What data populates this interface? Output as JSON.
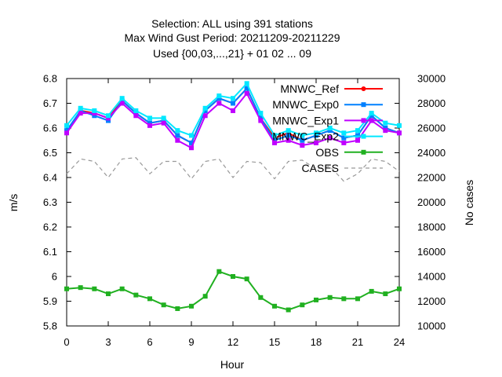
{
  "chart_data": {
    "type": "line",
    "title_lines": [
      "Selection: ALL using   391 stations",
      "Max Wind Gust   Period: 20211209-20211229",
      "Used {00,03,...,21} + 01 02 ... 09"
    ],
    "xlabel": "Hour",
    "ylabel": "m/s",
    "y2label": "No cases",
    "xlim": [
      0,
      24
    ],
    "ylim": [
      5.8,
      6.8
    ],
    "y2lim": [
      10000,
      30000
    ],
    "x_ticks": [
      "0",
      "3",
      "6",
      "9",
      "12",
      "15",
      "18",
      "21",
      "24"
    ],
    "y_ticks": [
      "5.8",
      "5.9",
      "6",
      "6.1",
      "6.2",
      "6.3",
      "6.4",
      "6.5",
      "6.6",
      "6.7",
      "6.8"
    ],
    "y2_ticks": [
      "10000",
      "12000",
      "14000",
      "16000",
      "18000",
      "20000",
      "22000",
      "24000",
      "26000",
      "28000",
      "30000"
    ],
    "grid": false,
    "legend_position": "top-right",
    "x": [
      0,
      1,
      2,
      3,
      4,
      5,
      6,
      7,
      8,
      9,
      10,
      11,
      12,
      13,
      14,
      15,
      16,
      17,
      18,
      19,
      20,
      21,
      22,
      23,
      24
    ],
    "series": [
      {
        "name": "MNWC_Ref",
        "color": "#ff0000",
        "marker": "circle",
        "axis": "left",
        "values": [
          6.58,
          6.67,
          6.66,
          6.64,
          6.71,
          6.66,
          6.62,
          6.63,
          6.57,
          6.54,
          6.67,
          6.72,
          6.7,
          6.76,
          6.64,
          6.56,
          6.58,
          6.55,
          6.57,
          6.59,
          6.56,
          6.57,
          6.65,
          6.6,
          6.58
        ]
      },
      {
        "name": "MNWC_Exp0",
        "color": "#0080ff",
        "marker": "square",
        "axis": "left",
        "values": [
          6.59,
          6.67,
          6.65,
          6.63,
          6.71,
          6.66,
          6.62,
          6.63,
          6.57,
          6.54,
          6.67,
          6.72,
          6.7,
          6.76,
          6.64,
          6.55,
          6.57,
          6.55,
          6.57,
          6.59,
          6.56,
          6.57,
          6.65,
          6.6,
          6.58
        ]
      },
      {
        "name": "MNWC_Exp1",
        "color": "#c000ff",
        "marker": "square",
        "axis": "left",
        "values": [
          6.58,
          6.66,
          6.66,
          6.64,
          6.7,
          6.65,
          6.61,
          6.62,
          6.55,
          6.52,
          6.65,
          6.7,
          6.67,
          6.74,
          6.63,
          6.54,
          6.55,
          6.53,
          6.54,
          6.56,
          6.54,
          6.55,
          6.63,
          6.59,
          6.58
        ]
      },
      {
        "name": "MNWC_Exp2",
        "color": "#00e8ff",
        "marker": "square",
        "axis": "left",
        "values": [
          6.61,
          6.68,
          6.67,
          6.65,
          6.72,
          6.67,
          6.64,
          6.64,
          6.59,
          6.57,
          6.68,
          6.73,
          6.72,
          6.78,
          6.66,
          6.57,
          6.59,
          6.57,
          6.58,
          6.6,
          6.58,
          6.59,
          6.66,
          6.62,
          6.61
        ]
      },
      {
        "name": "OBS",
        "color": "#20b020",
        "marker": "square",
        "axis": "left",
        "values": [
          5.95,
          5.955,
          5.95,
          5.93,
          5.95,
          5.925,
          5.91,
          5.885,
          5.87,
          5.88,
          5.92,
          6.02,
          6.0,
          5.99,
          5.915,
          5.88,
          5.865,
          5.885,
          5.905,
          5.915,
          5.91,
          5.91,
          5.94,
          5.93,
          5.95
        ]
      },
      {
        "name": "CASES",
        "color": "#999999",
        "marker": "none",
        "dashed": true,
        "axis": "right",
        "values": [
          22300,
          23500,
          23300,
          22000,
          23500,
          23600,
          22300,
          23300,
          23300,
          21900,
          23300,
          23500,
          22000,
          23300,
          23200,
          21900,
          23300,
          23400,
          22700,
          22900,
          21700,
          22300,
          23500,
          23300,
          22500
        ]
      }
    ]
  }
}
